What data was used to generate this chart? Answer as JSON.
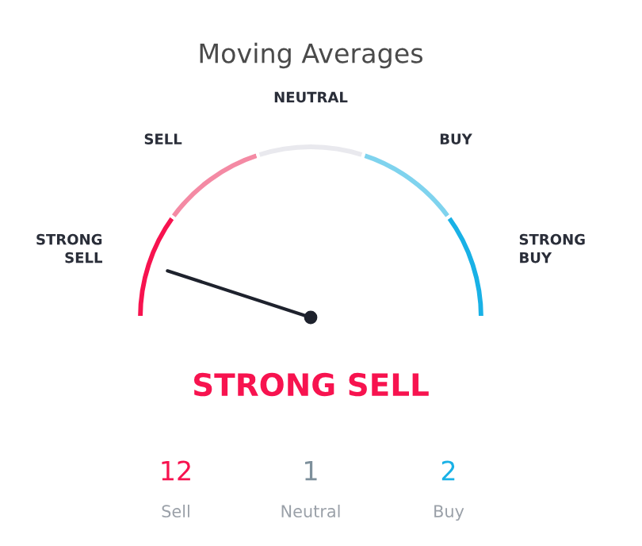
{
  "chart_data": {
    "type": "donut",
    "title": "Moving Averages",
    "categories": [
      "STRONG\nSELL",
      "SELL",
      "NEUTRAL",
      "BUY",
      "STRONG\nBUY"
    ],
    "values": [
      20,
      20,
      20,
      20,
      20
    ],
    "colors": [
      "#f7134f",
      "#f48aa4",
      "#e9e9ee",
      "#7fd3ee",
      "#19b1e6"
    ],
    "needle": "STRONG\nSELL",
    "annotations": [
      "STRONG SELL",
      "12",
      "Sell",
      "1",
      "Neutral",
      "2",
      "Buy"
    ]
  }
}
